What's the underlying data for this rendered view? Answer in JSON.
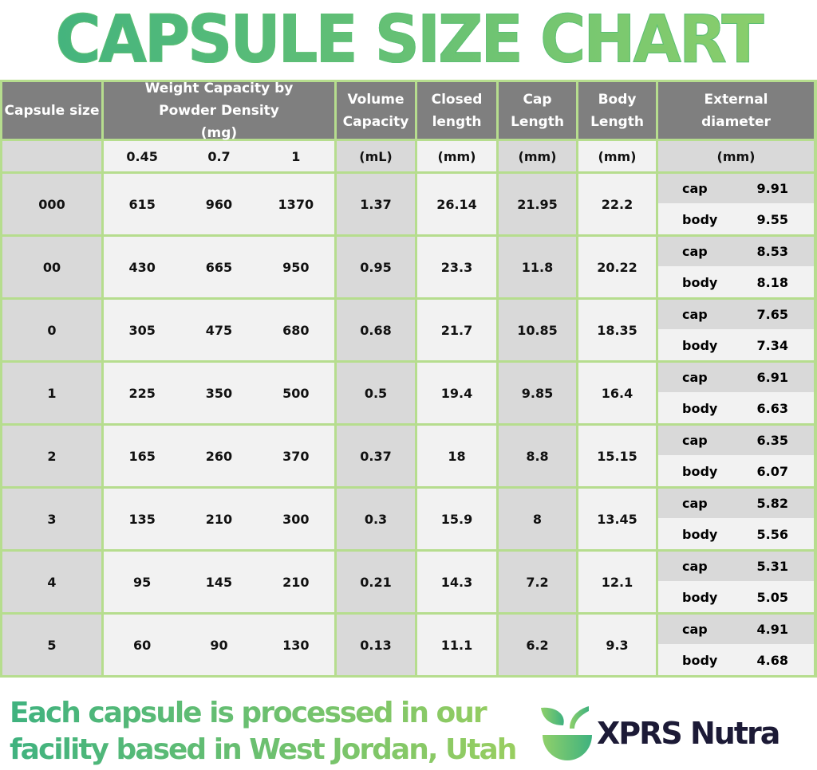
{
  "title": "CAPSULE SIZE CHART",
  "headers": {
    "capsule_size": "Capsule size",
    "weight": "Weight Capacity by Powder Density (mg)",
    "volume": "Volume Capacity",
    "closed": "Closed length",
    "cap": "Cap Length",
    "body": "Body Length",
    "external": "External diameter"
  },
  "units": {
    "densities": [
      "0.45",
      "0.7",
      "1"
    ],
    "volume": "(mL)",
    "closed": "(mm)",
    "cap": "(mm)",
    "body": "(mm)",
    "external": "(mm)"
  },
  "sub_labels": {
    "cap": "cap",
    "body": "body"
  },
  "rows": [
    {
      "size": "000",
      "w": [
        "615",
        "960",
        "1370"
      ],
      "vol": "1.37",
      "closed": "26.14",
      "cap": "21.95",
      "body": "22.2",
      "ext_cap": "9.91",
      "ext_body": "9.55"
    },
    {
      "size": "00",
      "w": [
        "430",
        "665",
        "950"
      ],
      "vol": "0.95",
      "closed": "23.3",
      "cap": "11.8",
      "body": "20.22",
      "ext_cap": "8.53",
      "ext_body": "8.18"
    },
    {
      "size": "0",
      "w": [
        "305",
        "475",
        "680"
      ],
      "vol": "0.68",
      "closed": "21.7",
      "cap": "10.85",
      "body": "18.35",
      "ext_cap": "7.65",
      "ext_body": "7.34"
    },
    {
      "size": "1",
      "w": [
        "225",
        "350",
        "500"
      ],
      "vol": "0.5",
      "closed": "19.4",
      "cap": "9.85",
      "body": "16.4",
      "ext_cap": "6.91",
      "ext_body": "6.63"
    },
    {
      "size": "2",
      "w": [
        "165",
        "260",
        "370"
      ],
      "vol": "0.37",
      "closed": "18",
      "cap": "8.8",
      "body": "15.15",
      "ext_cap": "6.35",
      "ext_body": "6.07"
    },
    {
      "size": "3",
      "w": [
        "135",
        "210",
        "300"
      ],
      "vol": "0.3",
      "closed": "15.9",
      "cap": "8",
      "body": "13.45",
      "ext_cap": "5.82",
      "ext_body": "5.56"
    },
    {
      "size": "4",
      "w": [
        "95",
        "145",
        "210"
      ],
      "vol": "0.21",
      "closed": "14.3",
      "cap": "7.2",
      "body": "12.1",
      "ext_cap": "5.31",
      "ext_body": "5.05"
    },
    {
      "size": "5",
      "w": [
        "60",
        "90",
        "130"
      ],
      "vol": "0.13",
      "closed": "11.1",
      "cap": "6.2",
      "body": "9.3",
      "ext_cap": "4.91",
      "ext_body": "4.68"
    }
  ],
  "footer": {
    "line1": "Each capsule is processed in our",
    "line2": "facility based in West Jordan, Utah",
    "brand": "XPRS Nutra"
  },
  "colors": {
    "header_bg": "#7f7f7f",
    "border_green": "#b6dd8e",
    "shade_dark": "#d9d9d9",
    "shade_light": "#f2f2f2",
    "brand_dark": "#1c1a36",
    "accent_green": "#5cbf74"
  }
}
